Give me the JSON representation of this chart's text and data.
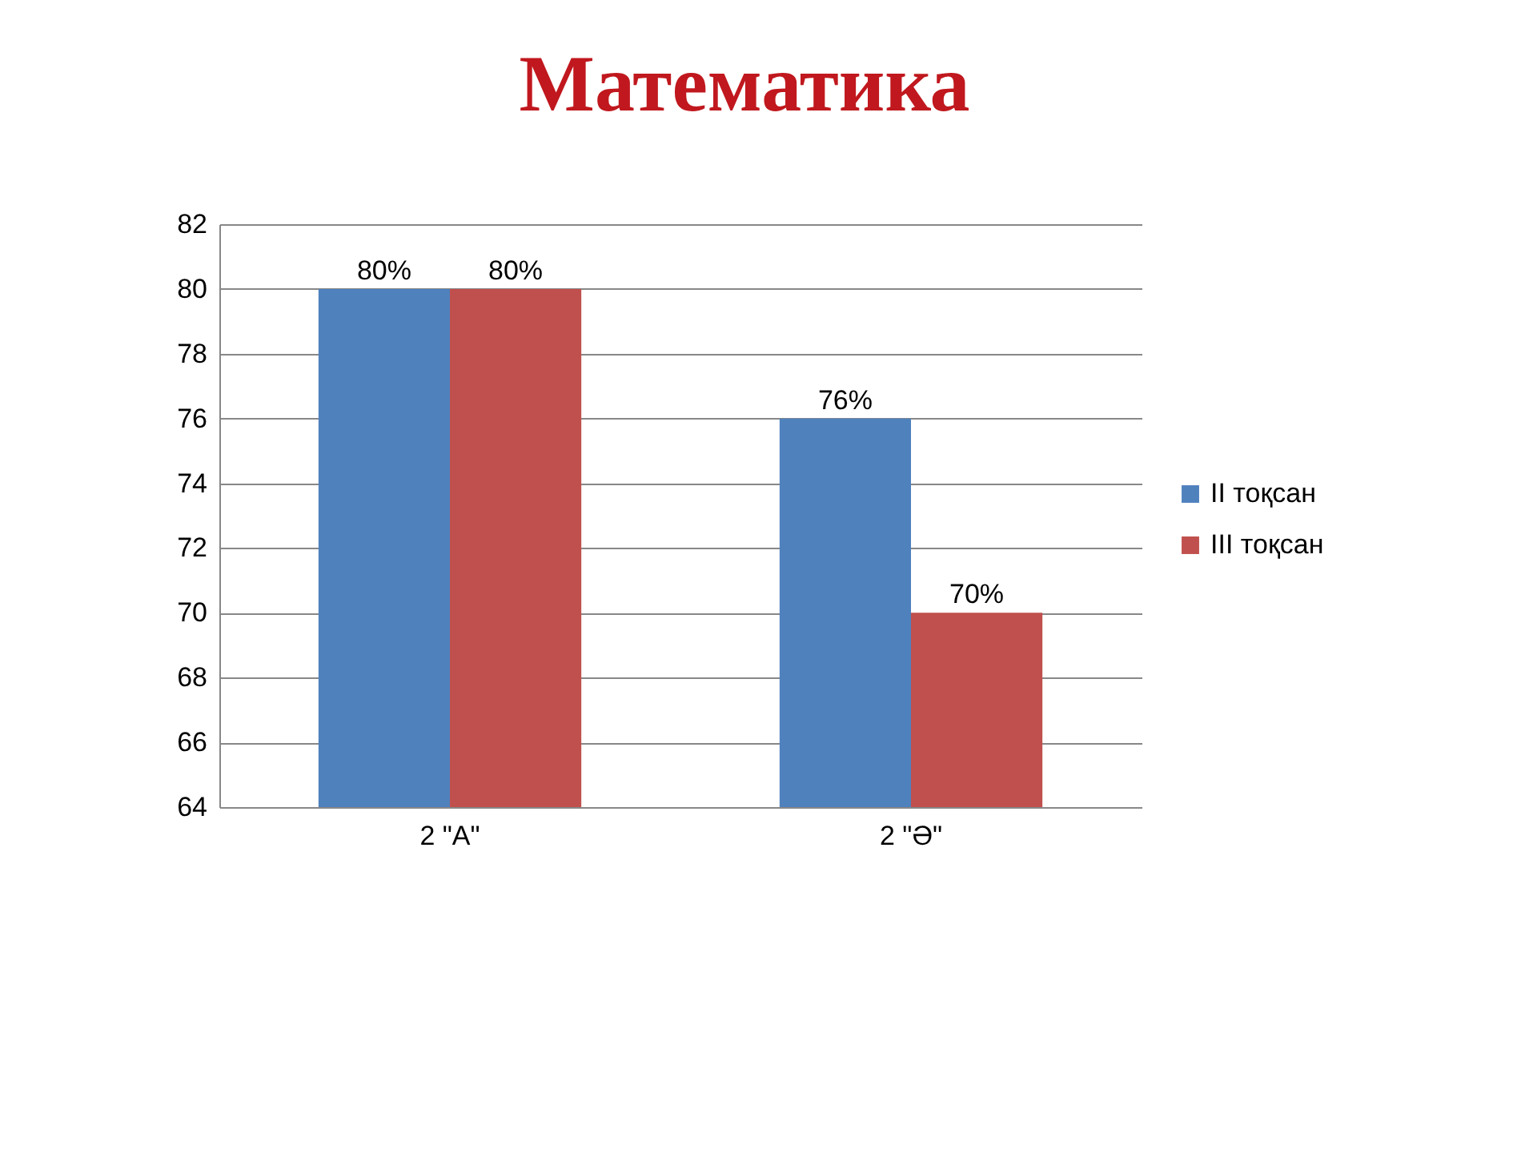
{
  "chart_data": {
    "type": "bar",
    "title": "Математика",
    "categories": [
      "2 \"А\"",
      "2 \"Ә\""
    ],
    "series": [
      {
        "name": "II тоқсан",
        "color": "#4f81bd",
        "values": [
          80,
          76
        ],
        "value_labels": [
          "80%",
          "76%"
        ]
      },
      {
        "name": "III тоқсан",
        "color": "#c0504d",
        "values": [
          80,
          70
        ],
        "value_labels": [
          "80%",
          "70%"
        ]
      }
    ],
    "ylim": [
      64,
      82
    ],
    "yticks": [
      64,
      66,
      68,
      70,
      72,
      74,
      76,
      78,
      80,
      82
    ],
    "grid": "y",
    "legend": "right"
  }
}
